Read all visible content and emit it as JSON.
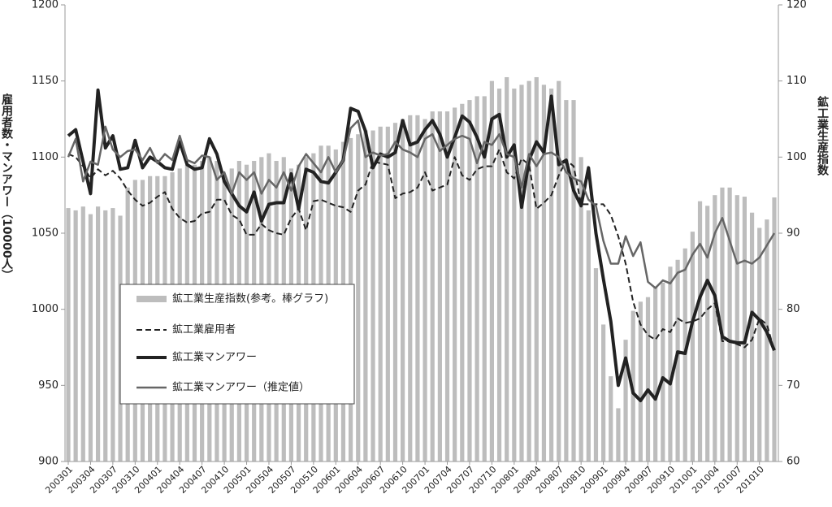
{
  "chart_data": {
    "type": "combo",
    "y_label": "雇用者数・マンアワー（10000人）",
    "y2_label": "鉱工業生産指数",
    "categories": [
      "200301",
      null,
      null,
      "200304",
      null,
      null,
      "200307",
      null,
      null,
      "200310",
      null,
      null,
      "200401",
      null,
      null,
      "200404",
      null,
      null,
      "200407",
      null,
      null,
      "200410",
      null,
      null,
      "200501",
      null,
      null,
      "200504",
      null,
      null,
      "200507",
      null,
      null,
      "200510",
      null,
      null,
      "200601",
      null,
      null,
      "200604",
      null,
      null,
      "200607",
      null,
      null,
      "200610",
      null,
      null,
      "200701",
      null,
      null,
      "200704",
      null,
      null,
      "200707",
      null,
      null,
      "200710",
      null,
      null,
      "200801",
      null,
      null,
      "200804",
      null,
      null,
      "200807",
      null,
      null,
      "200810",
      null,
      null,
      "200901",
      null,
      null,
      "200904",
      null,
      null,
      "200907",
      null,
      null,
      "200910",
      null,
      null,
      "201001",
      null,
      null,
      "201004",
      null,
      null,
      "201007",
      null,
      null,
      "201010",
      null,
      null
    ],
    "ylim": [
      900,
      1200
    ],
    "yticks": [
      900,
      950,
      1000,
      1050,
      1100,
      1150,
      1200
    ],
    "y2lim": [
      60,
      120
    ],
    "y2ticks": [
      60,
      70,
      80,
      90,
      100,
      110,
      120
    ],
    "series": [
      {
        "name": "鉱工業生産指数(参考。棒グラフ)",
        "type": "bar",
        "axis": "y2",
        "color": "#bdbdbd",
        "values": [
          93.3,
          93,
          93.5,
          92.5,
          93.5,
          93,
          93.3,
          92.3,
          96,
          97,
          97,
          97.5,
          97.5,
          97.5,
          98,
          98.5,
          99,
          99,
          99.5,
          100,
          99.5,
          97,
          98.5,
          99.5,
          99,
          99.5,
          100,
          100.5,
          99.5,
          100,
          98.5,
          99,
          100,
          100.5,
          101.5,
          101.5,
          101,
          102,
          102.5,
          103,
          103.5,
          103.5,
          104,
          104,
          104.5,
          105,
          105.5,
          105.5,
          105,
          106,
          106,
          106,
          106.5,
          107,
          107.5,
          108,
          108,
          110,
          109,
          110.5,
          109,
          109.5,
          110,
          110.5,
          109.5,
          109,
          110,
          107.5,
          107.5,
          100,
          93,
          85.4,
          78,
          71.2,
          67,
          76,
          79.8,
          81,
          81.6,
          83,
          83.5,
          85.6,
          86.5,
          88,
          90.2,
          94.2,
          93.6,
          95,
          96,
          96,
          95,
          94.8,
          92.7,
          90.7,
          91.8,
          94.7
        ]
      },
      {
        "name": "鉱工業雇用者",
        "type": "line",
        "dash": true,
        "color": "#222222",
        "values": [
          1102,
          1100,
          1094,
          1086,
          1092,
          1088,
          1091,
          1086,
          1078,
          1072,
          1068,
          1070,
          1074,
          1077,
          1066,
          1060,
          1057,
          1058,
          1063,
          1064,
          1072,
          1072,
          1062,
          1059,
          1049,
          1049,
          1056,
          1052,
          1050,
          1049,
          1060,
          1066,
          1052,
          1071,
          1072,
          1070,
          1068,
          1067,
          1064,
          1078,
          1082,
          1097,
          1096,
          1095,
          1073,
          1076,
          1077,
          1080,
          1090,
          1078,
          1080,
          1082,
          1100,
          1088,
          1085,
          1092,
          1094,
          1094,
          1105,
          1090,
          1086,
          1099,
          1095,
          1066,
          1070,
          1075,
          1088,
          1098,
          1094,
          1069,
          1069,
          1069,
          1069,
          1062,
          1048,
          1030,
          1005,
          990,
          983,
          980,
          987,
          985,
          994,
          991,
          992,
          994,
          1000,
          1004,
          979,
          979,
          977,
          975,
          980,
          994,
          990,
          973
        ]
      },
      {
        "name": "鉱工業マンアワー",
        "type": "line",
        "width": 4,
        "color": "#222222",
        "values": [
          1114,
          1118,
          1097,
          1076,
          1144,
          1106,
          1114,
          1092,
          1093,
          1111,
          1093,
          1100,
          1097,
          1093,
          1092,
          1110,
          1095,
          1092,
          1093,
          1112,
          1102,
          1084,
          1076,
          1068,
          1064,
          1077,
          1058,
          1069,
          1070,
          1070,
          1089,
          1066,
          1092,
          1090,
          1084,
          1083,
          1090,
          1098,
          1132,
          1130,
          1117,
          1093,
          1102,
          1100,
          1103,
          1124,
          1108,
          1110,
          1118,
          1124,
          1115,
          1100,
          1113,
          1127,
          1123,
          1113,
          1100,
          1125,
          1128,
          1100,
          1108,
          1067,
          1098,
          1110,
          1103,
          1140,
          1095,
          1098,
          1078,
          1068,
          1093,
          1050,
          1020,
          992,
          950,
          968,
          945,
          940,
          947,
          941,
          955,
          951,
          972,
          971,
          992,
          1008,
          1019,
          1009,
          982,
          979,
          978,
          978,
          998,
          993,
          985,
          973
        ]
      },
      {
        "name": "鉱工業マンアワー（推定値）",
        "type": "line",
        "width": 2.5,
        "color": "#666666",
        "values": [
          1100,
          1112,
          1084,
          1097,
          1095,
          1120,
          1105,
          1100,
          1104,
          1105,
          1098,
          1106,
          1096,
          1102,
          1098,
          1114,
          1098,
          1096,
          1101,
          1100,
          1085,
          1090,
          1076,
          1090,
          1085,
          1090,
          1076,
          1085,
          1080,
          1090,
          1078,
          1094,
          1102,
          1096,
          1090,
          1100,
          1090,
          1098,
          1119,
          1124,
          1100,
          1103,
          1101,
          1102,
          1110,
          1105,
          1103,
          1100,
          1112,
          1115,
          1104,
          1108,
          1112,
          1114,
          1112,
          1096,
          1110,
          1108,
          1115,
          1102,
          1100,
          1080,
          1102,
          1094,
          1102,
          1103,
          1100,
          1090,
          1086,
          1084,
          1072,
          1068,
          1045,
          1030,
          1030,
          1048,
          1035,
          1044,
          1018,
          1014,
          1019,
          1017,
          1024,
          1026,
          1036,
          1043,
          1034,
          1050,
          1060,
          1045,
          1030,
          1032,
          1030,
          1034,
          1042,
          1050
        ]
      }
    ]
  }
}
